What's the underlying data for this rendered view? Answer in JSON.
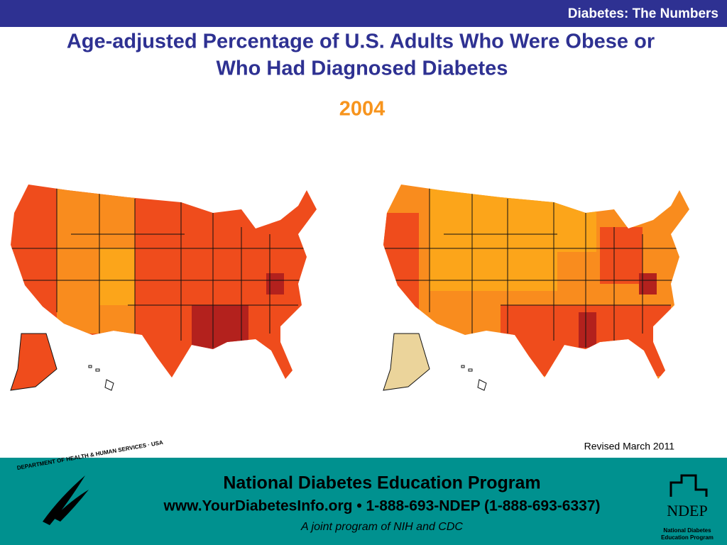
{
  "header": {
    "label": "Diabetes: The Numbers"
  },
  "title": {
    "line1": "Age-adjusted Percentage of U.S. Adults Who Were Obese or",
    "line2": "Who Had Diagnosed Diabetes",
    "year": "2004"
  },
  "note": "Revised March 2011",
  "footer": {
    "line1": "National Diabetes Education Program",
    "line2": "www.YourDiabetesInfo.org • 1-888-693-NDEP (1-888-693-6337)",
    "line3": "A joint program of NIH and CDC"
  },
  "logos": {
    "hhs": "DEPARTMENT OF HEALTH & HUMAN SERVICES · USA",
    "ndep": "NDEP",
    "ndep_sub1": "National Diabetes",
    "ndep_sub2": "Education Program"
  }
}
